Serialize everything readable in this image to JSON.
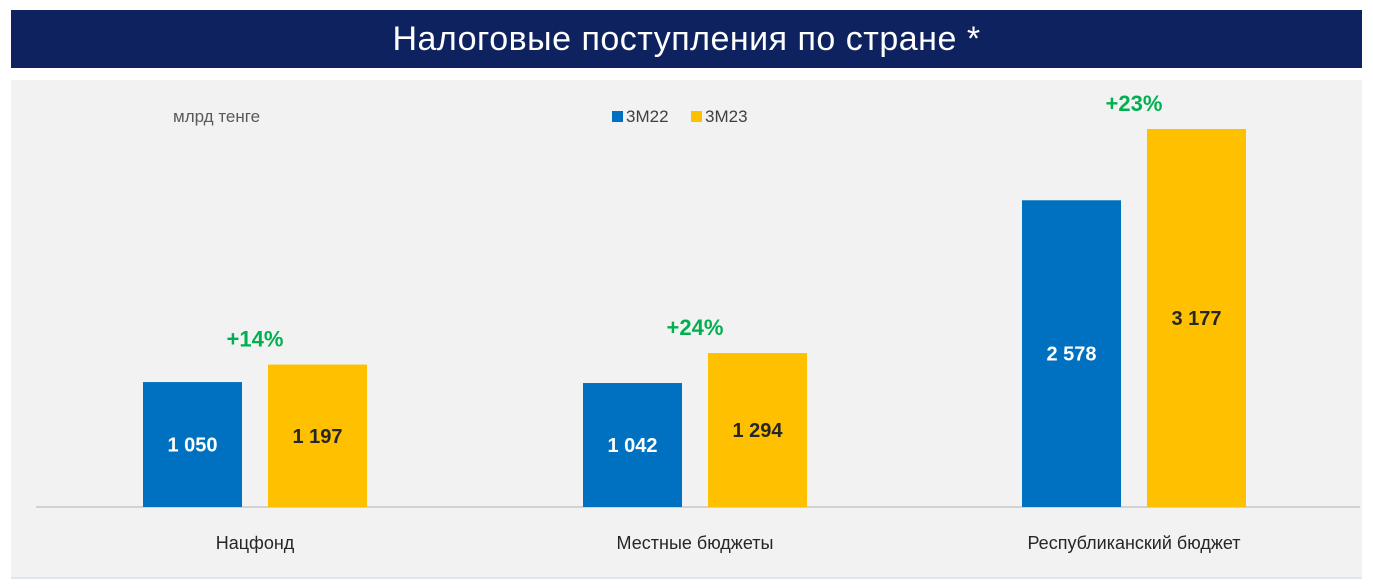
{
  "title": "Налоговые поступления по стране *",
  "unit_label": "млрд тенге",
  "colors": {
    "title_bg": "#0f2260",
    "series_1": "#0070c0",
    "series_2": "#ffc000",
    "growth": "#00b050",
    "panel_bg": "#f2f2f2"
  },
  "chart_data": {
    "type": "bar",
    "title": "Налоговые поступления по стране *",
    "ylabel": "млрд тенге",
    "xlabel": "",
    "categories": [
      "Нацфонд",
      "Местные бюджеты",
      "Республиканский бюджет"
    ],
    "series": [
      {
        "name": "3М22",
        "values": [
          1050,
          1042,
          2578
        ],
        "labels": [
          "1 050",
          "1 042",
          "2 578"
        ]
      },
      {
        "name": "3М23",
        "values": [
          1197,
          1294,
          3177
        ],
        "labels": [
          "1 197",
          "1 294",
          "3 177"
        ]
      }
    ],
    "growth_labels": [
      "+14%",
      "+24%",
      "+23%"
    ],
    "ylim": [
      0,
      3500
    ],
    "grid": false,
    "legend": "top-center"
  }
}
